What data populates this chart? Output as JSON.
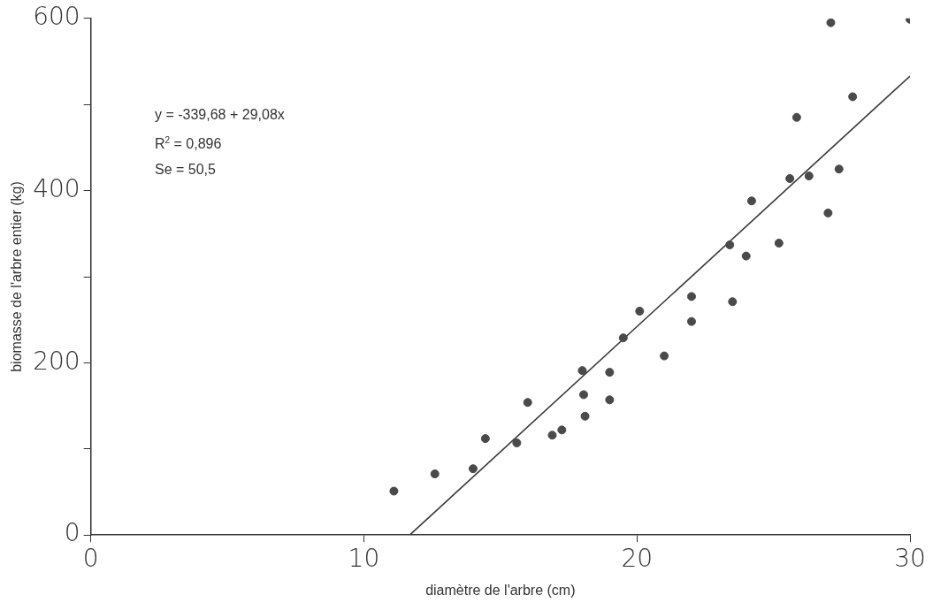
{
  "chart_data": {
    "type": "scatter",
    "xlabel": "diamètre de l'arbre (cm)",
    "ylabel": "biomasse de l'arbre entier (kg)",
    "xlim": [
      0,
      30
    ],
    "xticks": [
      0,
      10,
      20,
      30
    ],
    "ylim": [
      0,
      600
    ],
    "yticks": [
      0,
      {
        "value": 100,
        "label": null
      },
      200,
      {
        "value": 300,
        "label": null
      },
      400,
      {
        "value": 500,
        "label": null
      },
      600
    ],
    "grid": false,
    "legend": false,
    "annotations": [
      "y = -339,68 + 29,08x",
      "R$^{2}$ = 0,896",
      "Se = 50,5"
    ],
    "series": [
      {
        "color": "#4a4a4a",
        "marker": "circle",
        "x": [
          11.1,
          12.6,
          14.0,
          14.45,
          15.6,
          16.0,
          16.9,
          17.25,
          18.0,
          18.05,
          18.1,
          19.0,
          19.0,
          19.5,
          20.1,
          21.0,
          22.0,
          22.0,
          23.4,
          23.5,
          24.0,
          24.2,
          25.2,
          25.6,
          25.85,
          26.3,
          27.0,
          27.1,
          27.4,
          27.9,
          30.0
        ],
        "values": [
          51,
          71,
          77,
          112,
          107,
          154,
          116,
          122,
          191,
          163,
          138,
          189,
          157,
          229,
          260,
          208,
          277,
          248,
          337,
          271,
          324,
          388,
          339,
          414,
          485,
          417,
          374,
          595,
          425,
          509,
          599
        ]
      },
      {
        "type": "line",
        "color": "#3a3a3a",
        "marker": "none",
        "x": [
          11.68,
          30
        ],
        "values": [
          0,
          533
        ]
      }
    ]
  }
}
